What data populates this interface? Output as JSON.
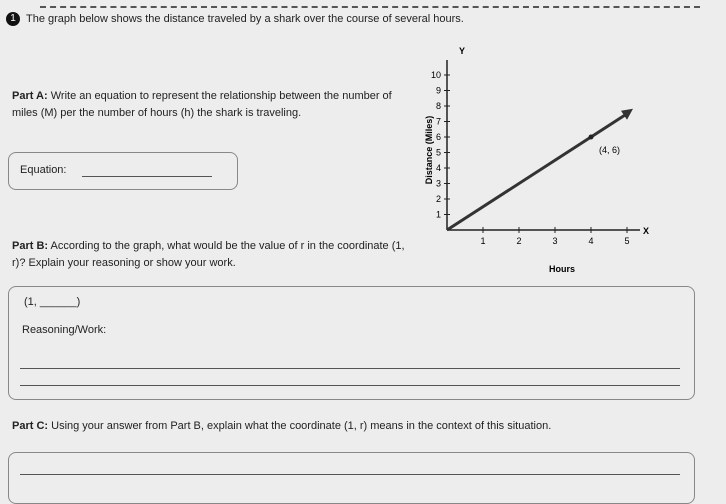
{
  "question": {
    "number": "1",
    "prompt": "The graph below shows the distance traveled by a shark over the course of several hours."
  },
  "part_a": {
    "label": "Part A:",
    "text": "Write an equation to represent the relationship between the number of miles (M) per the number of hours (h) the shark is traveling.",
    "equation_label": "Equation:"
  },
  "part_b": {
    "label": "Part B:",
    "text": "According to the graph, what would be the value of r in the coordinate (1, r)? Explain your reasoning or show your work.",
    "answer": "(1, ______)",
    "reasoning_label": "Reasoning/Work:"
  },
  "part_c": {
    "label": "Part C:",
    "text": "Using your answer from Part B, explain what the coordinate (1, r) means in the context of this situation."
  },
  "graph": {
    "y_axis_letter": "Y",
    "x_axis_letter": "X",
    "y_label": "Distance (Miles)",
    "x_label": "Hours",
    "xticks": [
      1,
      2,
      3,
      4,
      5
    ],
    "yticks": [
      1,
      2,
      3,
      4,
      5,
      6,
      7,
      8,
      9,
      10
    ],
    "point": {
      "x": 4,
      "y": 6,
      "label": "(4, 6)"
    }
  }
}
